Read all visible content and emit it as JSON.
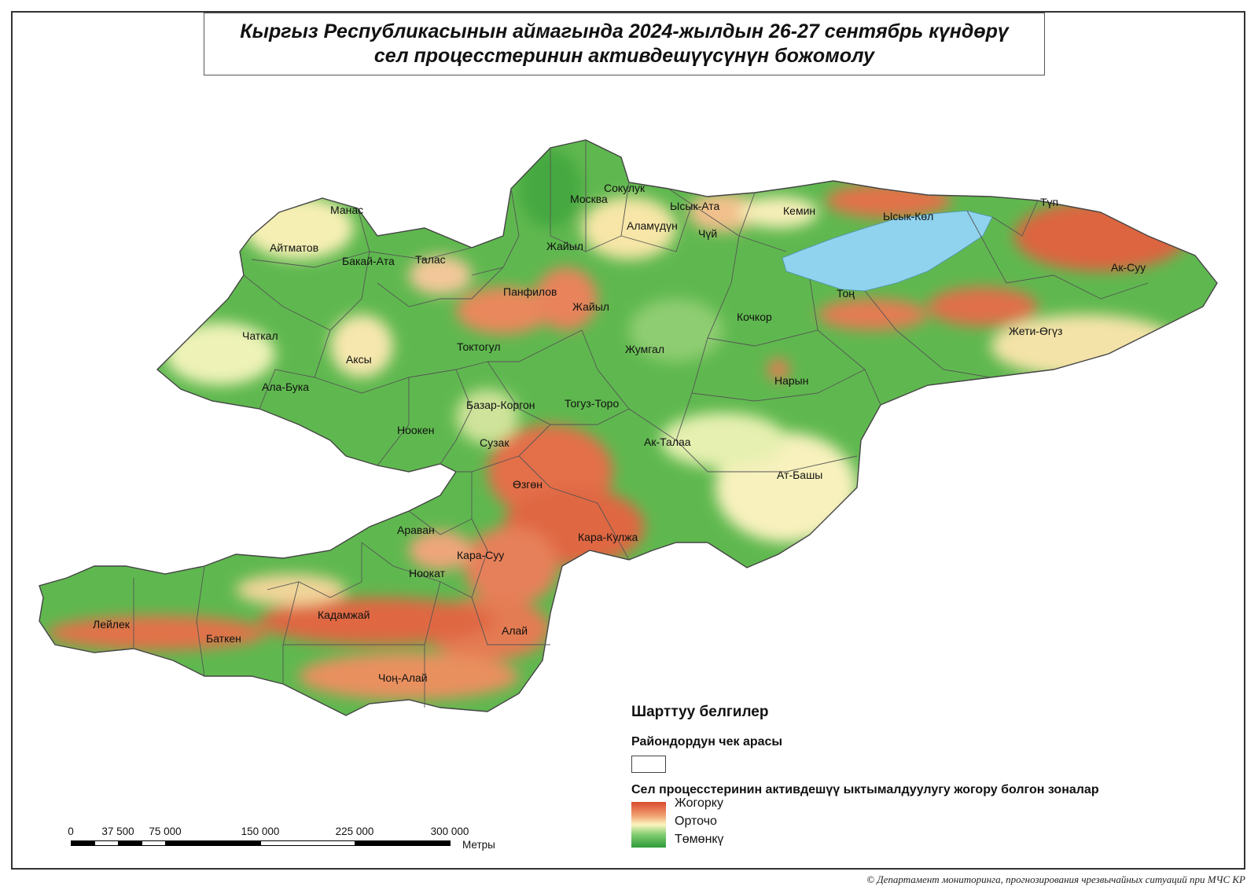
{
  "title": {
    "line1": "Кыргыз Республикасынын аймагында 2024-жылдын 26-27 сентябрь күндөрү",
    "line2": "сел процесстеринин активдешүүсүнүн божомолу"
  },
  "districts": [
    {
      "id": "manas",
      "label": "Манас"
    },
    {
      "id": "aitmatov",
      "label": "Айтматов"
    },
    {
      "id": "bakai-ata",
      "label": "Бакай-Ата"
    },
    {
      "id": "talas",
      "label": "Талас"
    },
    {
      "id": "moskva",
      "label": "Москва"
    },
    {
      "id": "sokuluk",
      "label": "Сокулук"
    },
    {
      "id": "ysyk-ata",
      "label": "Ысык-Ата"
    },
    {
      "id": "alamudun",
      "label": "Аламүдүн"
    },
    {
      "id": "chui",
      "label": "Чүй"
    },
    {
      "id": "kemin",
      "label": "Кемин"
    },
    {
      "id": "ysyk-kol",
      "label": "Ысык-Көл"
    },
    {
      "id": "tup",
      "label": "Түп"
    },
    {
      "id": "ak-suu",
      "label": "Ак-Суу"
    },
    {
      "id": "zhaiyl-north",
      "label": "Жайыл"
    },
    {
      "id": "panfilov",
      "label": "Панфилов"
    },
    {
      "id": "zhaiyl-south",
      "label": "Жайыл"
    },
    {
      "id": "chatkal",
      "label": "Чаткал"
    },
    {
      "id": "toktogul",
      "label": "Токтогул"
    },
    {
      "id": "kochkor",
      "label": "Кочкор"
    },
    {
      "id": "ton",
      "label": "Тоң"
    },
    {
      "id": "jeti-oguz",
      "label": "Жети-Өгүз"
    },
    {
      "id": "aksy",
      "label": "Аксы"
    },
    {
      "id": "zhumgal",
      "label": "Жумгал"
    },
    {
      "id": "ala-buka",
      "label": "Ала-Бука"
    },
    {
      "id": "naryn",
      "label": "Нарын"
    },
    {
      "id": "bazar-korgon",
      "label": "Базар-Коргон"
    },
    {
      "id": "toguz-toro",
      "label": "Тогуз-Торо"
    },
    {
      "id": "nooken",
      "label": "Ноокен"
    },
    {
      "id": "suzak",
      "label": "Сузак"
    },
    {
      "id": "ak-talaa",
      "label": "Ак-Талаа"
    },
    {
      "id": "at-bashy",
      "label": "Ат-Башы"
    },
    {
      "id": "ozgon",
      "label": "Өзгөн"
    },
    {
      "id": "aravan",
      "label": "Араван"
    },
    {
      "id": "kara-kulja",
      "label": "Кара-Кулжа"
    },
    {
      "id": "kara-suu",
      "label": "Кара-Суу"
    },
    {
      "id": "nookat",
      "label": "Ноокат"
    },
    {
      "id": "kadamjai",
      "label": "Кадамжай"
    },
    {
      "id": "leilek",
      "label": "Лейлек"
    },
    {
      "id": "batken",
      "label": "Баткен"
    },
    {
      "id": "alai",
      "label": "Алай"
    },
    {
      "id": "chon-alai",
      "label": "Чоң-Алай"
    }
  ],
  "legend": {
    "heading": "Шарттуу белгилер",
    "boundary_label": "Райондордун чек арасы",
    "zones_label": "Сел процесстеринин активдешүү ыктымалдуулугу жогору болгон зоналар",
    "high": "Жогорку",
    "medium": "Орточо",
    "low": "Төмөнкү"
  },
  "scalebar": {
    "ticks": [
      "0",
      "37 500",
      "75 000",
      "150 000",
      "225 000",
      "300 000"
    ],
    "unit": "Метры"
  },
  "colors": {
    "high": "#d94a2f",
    "medium": "#fbf5be",
    "low": "#2f9b39",
    "lake": "#8fd3ee"
  },
  "footer": "© Департамент мониторинга, прогнозирования чрезвычайных ситуаций при МЧС КР"
}
